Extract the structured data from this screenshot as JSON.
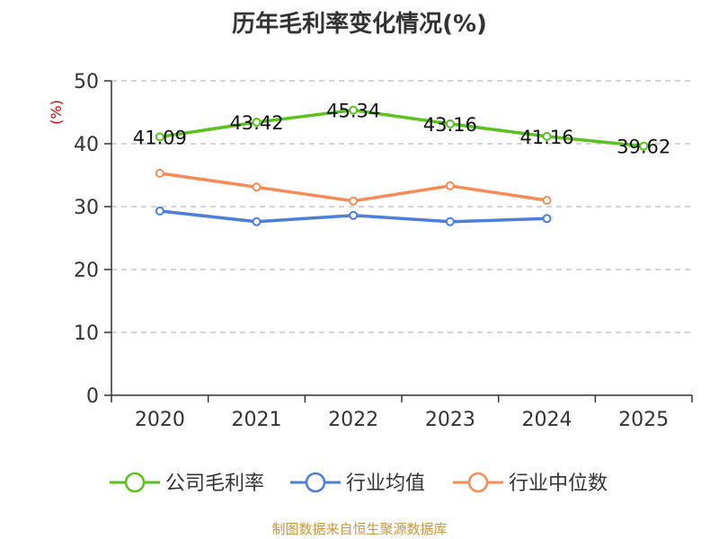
{
  "chart_data": {
    "type": "line",
    "title": "历年毛利率变化情况(%)",
    "ylabel": "(%)",
    "xlabel": "",
    "categories": [
      "2020",
      "2021",
      "2022",
      "2023",
      "2024",
      "2025"
    ],
    "ylim": [
      0,
      50
    ],
    "yticks": [
      0,
      10,
      20,
      30,
      40,
      50
    ],
    "grid": true,
    "legend_position": "bottom",
    "series": [
      {
        "name": "公司毛利率",
        "color": "#5ac21f",
        "values": [
          41.09,
          43.42,
          45.34,
          43.16,
          41.16,
          39.62
        ],
        "labels": [
          "41.09",
          "43.42",
          "45.34",
          "43.16",
          "41.16",
          "39.62"
        ],
        "show_labels": true
      },
      {
        "name": "行业均值",
        "color": "#4b7fd8",
        "values": [
          29.3,
          27.6,
          28.6,
          27.6,
          28.1,
          null
        ],
        "show_labels": false
      },
      {
        "name": "行业中位数",
        "color": "#f58c55",
        "values": [
          35.3,
          33.1,
          30.9,
          33.3,
          31.0,
          null
        ],
        "show_labels": false
      }
    ]
  },
  "source_note": "制图数据来自恒生聚源数据库"
}
